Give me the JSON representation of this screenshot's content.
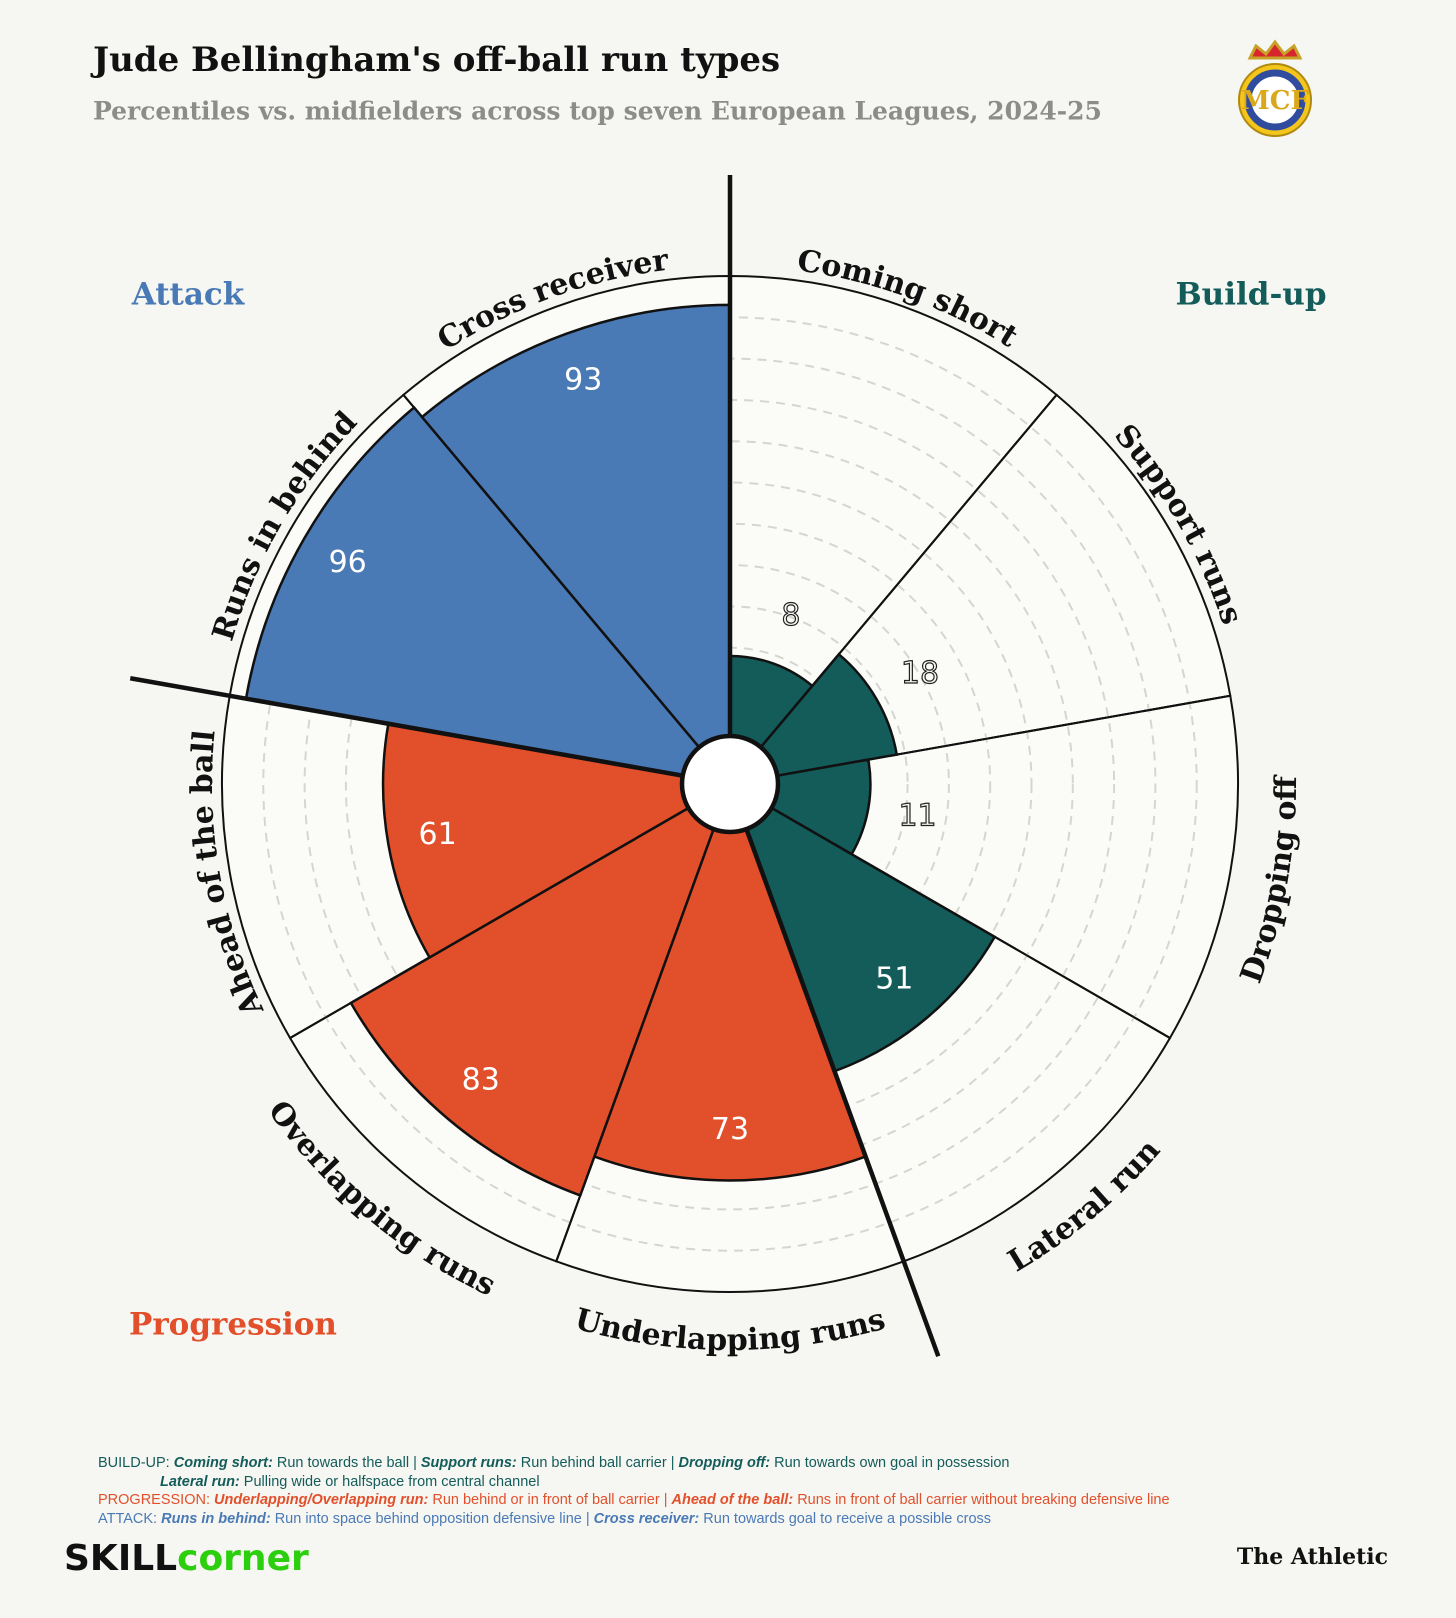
{
  "chart_data": {
    "type": "polar_bar",
    "title": "Jude Bellingham's off-ball run types",
    "subtitle": "Percentiles vs. midfielders across top seven European Leagues, 2024-25",
    "categories": [
      "Coming short",
      "Support runs",
      "Dropping off",
      "Lateral run",
      "Underlapping runs",
      "Overlapping runs",
      "Ahead of the ball",
      "Runs in behind",
      "Cross receiver"
    ],
    "values": [
      8,
      18,
      11,
      51,
      73,
      83,
      61,
      96,
      93
    ],
    "colors": [
      "#135c5a",
      "#135c5a",
      "#135c5a",
      "#135c5a",
      "#e2502b",
      "#e2502b",
      "#e2502b",
      "#4a7ab5",
      "#4a7ab5"
    ],
    "rlim": [
      0,
      100
    ],
    "rticks": [
      10,
      20,
      30,
      40,
      50,
      60,
      70,
      80,
      90
    ],
    "grid": true,
    "group_labels": [
      {
        "text": "Build-up",
        "color": "#135c5a"
      },
      {
        "text": "Progression",
        "color": "#e2502b"
      },
      {
        "text": "Attack",
        "color": "#4a7ab5"
      }
    ]
  },
  "notes": [
    {
      "label": "BUILD-UP:",
      "color": "#135c5a",
      "lines": [
        [
          {
            "term": "Coming short:",
            "desc": "Run towards the ball"
          },
          {
            "term": "Support runs:",
            "desc": "Run behind ball carrier"
          },
          {
            "term": "Dropping off:",
            "desc": "Run towards own goal in possession"
          }
        ],
        [
          {
            "term": "Lateral run:",
            "desc": "Pulling wide or halfspace from central channel"
          }
        ]
      ]
    },
    {
      "label": "PROGRESSION:",
      "color": "#e2502b",
      "lines": [
        [
          {
            "term": "Underlapping/Overlapping run:",
            "desc": "Run behind or in front of ball carrier"
          },
          {
            "term": "Ahead of the ball:",
            "desc": "Runs in front of ball carrier without breaking defensive line"
          }
        ]
      ]
    },
    {
      "label": "ATTACK:",
      "color": "#4a7ab5",
      "lines": [
        [
          {
            "term": "Runs in behind:",
            "desc": "Run into space behind opposition defensive line"
          },
          {
            "term": "Cross receiver:",
            "desc": "Run towards goal to receive a possible cross"
          }
        ]
      ]
    }
  ],
  "separator": "|",
  "logos": {
    "skillcorner": [
      "SKILL",
      "corner"
    ],
    "athletic": "The Athletic"
  }
}
